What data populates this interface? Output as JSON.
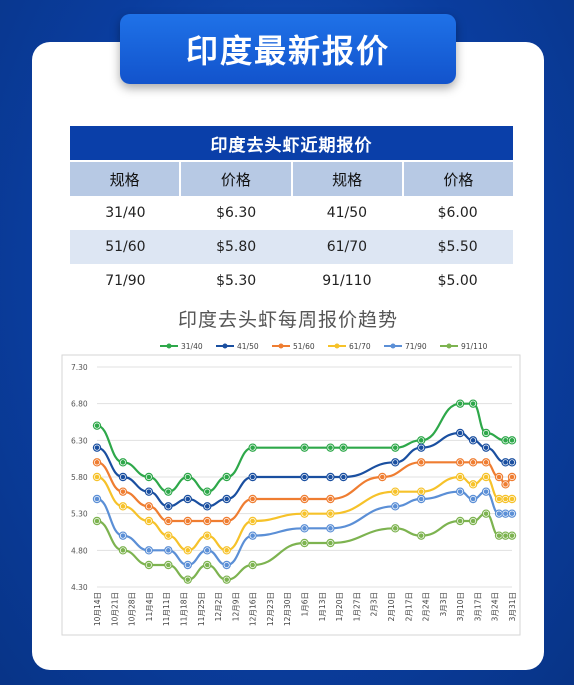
{
  "banner": {
    "title": "印度最新报价"
  },
  "table": {
    "title": "印度去头虾近期报价",
    "headers": [
      "规格",
      "价格",
      "规格",
      "价格"
    ],
    "rows": [
      [
        "31/40",
        "$6.30",
        "41/50",
        "$6.00"
      ],
      [
        "51/60",
        "$5.80",
        "61/70",
        "$5.50"
      ],
      [
        "71/90",
        "$5.30",
        "91/110",
        "$5.00"
      ]
    ]
  },
  "chart_data": {
    "type": "line",
    "title": "印度去头虾每周报价趋势",
    "xlabel": "",
    "ylabel": "",
    "ylim": [
      4.3,
      7.3
    ],
    "yticks": [
      "7.30",
      "6.80",
      "6.30",
      "5.80",
      "5.30",
      "4.80",
      "4.30"
    ],
    "grid": true,
    "legend": "top",
    "categories": [
      "10月14日",
      "10月21日",
      "10月28日",
      "11月4日",
      "11月11日",
      "11月18日",
      "11月25日",
      "12月2日",
      "12月9日",
      "12月16日",
      "12月23日",
      "12月30日",
      "1月6日",
      "1月13日",
      "1月20日",
      "1月27日",
      "2月3日",
      "2月10日",
      "2月17日",
      "2月24日",
      "3月3日",
      "3月10日",
      "3月17日",
      "3月24日",
      "3月31日"
    ],
    "x_label_positions": [
      0,
      1,
      2,
      3,
      4,
      5,
      6,
      7,
      8,
      9,
      10,
      11,
      12,
      13,
      14,
      15,
      16,
      17,
      18,
      19,
      20,
      21,
      22,
      23,
      24
    ],
    "series": [
      {
        "name": "31/40",
        "color": "#2ea84a",
        "values": [
          6.5,
          6.0,
          5.8,
          5.6,
          5.8,
          5.6,
          5.8,
          6.2,
          6.2,
          6.2,
          6.2,
          6.2,
          6.3,
          6.8,
          6.8,
          6.4,
          6.3,
          6.3
        ],
        "x": [
          0,
          2,
          4,
          5.5,
          7,
          8.5,
          10,
          12,
          16,
          18,
          19,
          23,
          25,
          28,
          29,
          30,
          31.5,
          32
        ]
      },
      {
        "name": "41/50",
        "color": "#1a4fa0",
        "values": [
          6.2,
          5.8,
          5.6,
          5.4,
          5.5,
          5.4,
          5.5,
          5.8,
          5.8,
          5.8,
          5.8,
          6.0,
          6.2,
          6.4,
          6.3,
          6.2,
          6.0,
          6.0
        ],
        "x": [
          0,
          2,
          4,
          5.5,
          7,
          8.5,
          10,
          12,
          16,
          18,
          19,
          23,
          25,
          28,
          29,
          30,
          31.5,
          32
        ]
      },
      {
        "name": "51/60",
        "color": "#ef7d31",
        "values": [
          6.0,
          5.6,
          5.4,
          5.2,
          5.2,
          5.2,
          5.2,
          5.5,
          5.5,
          5.5,
          5.8,
          6.0,
          6.0,
          6.0,
          6.0,
          5.8,
          5.7,
          5.8
        ],
        "x": [
          0,
          2,
          4,
          5.5,
          7,
          8.5,
          10,
          12,
          16,
          18,
          22,
          25,
          28,
          29,
          30,
          31,
          31.5,
          32
        ]
      },
      {
        "name": "61/70",
        "color": "#f6c22a",
        "values": [
          5.8,
          5.4,
          5.2,
          5.0,
          4.8,
          5.0,
          4.8,
          5.2,
          5.3,
          5.3,
          5.6,
          5.6,
          5.8,
          5.7,
          5.8,
          5.5,
          5.5,
          5.5
        ],
        "x": [
          0,
          2,
          4,
          5.5,
          7,
          8.5,
          10,
          12,
          16,
          18,
          23,
          25,
          28,
          29,
          30,
          31,
          31.5,
          32
        ]
      },
      {
        "name": "71/90",
        "color": "#5b8fd6",
        "values": [
          5.5,
          5.0,
          4.8,
          4.8,
          4.6,
          4.8,
          4.6,
          5.0,
          5.1,
          5.1,
          5.4,
          5.5,
          5.6,
          5.5,
          5.6,
          5.3,
          5.3,
          5.3
        ],
        "x": [
          0,
          2,
          4,
          5.5,
          7,
          8.5,
          10,
          12,
          16,
          18,
          23,
          25,
          28,
          29,
          30,
          31,
          31.5,
          32
        ]
      },
      {
        "name": "91/110",
        "color": "#7db350",
        "values": [
          5.2,
          4.8,
          4.6,
          4.6,
          4.4,
          4.6,
          4.4,
          4.6,
          4.9,
          4.9,
          5.1,
          5.0,
          5.2,
          5.2,
          5.3,
          5.0,
          5.0,
          5.0
        ],
        "x": [
          0,
          2,
          4,
          5.5,
          7,
          8.5,
          10,
          12,
          16,
          18,
          23,
          25,
          28,
          29,
          30,
          31,
          31.5,
          32
        ]
      }
    ]
  }
}
